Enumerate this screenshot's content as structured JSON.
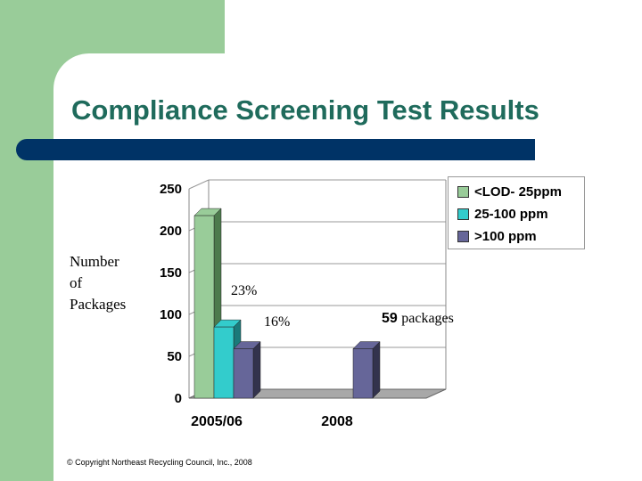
{
  "slide": {
    "title": "Compliance Screening Test Results"
  },
  "annotations": {
    "pct_2005_mid": "23%",
    "pct_2005_high": "16%",
    "packages_num": "59",
    "packages_unit": "packages"
  },
  "copyright": "© Copyright Northeast Recycling Council, Inc., 2008",
  "ylabel_lines": [
    "Number",
    "of",
    "Packages"
  ],
  "colors": {
    "green": "#99cc99",
    "teal": "#33cccc",
    "purple": "#666699",
    "title": "#1f6b5c",
    "bar": "#003366"
  },
  "chart_data": {
    "type": "bar",
    "categories": [
      "2005/06",
      "2008"
    ],
    "series": [
      {
        "name": "<LOD- 25ppm",
        "values": [
          218,
          0
        ],
        "color": "#99cc99",
        "side": "#4d7a4d"
      },
      {
        "name": "25-100 ppm",
        "values": [
          85,
          0
        ],
        "color": "#33cccc",
        "side": "#1a7a7a"
      },
      {
        "name": ">100 ppm",
        "values": [
          59,
          59
        ],
        "color": "#666699",
        "side": "#33334d"
      }
    ],
    "yticks": [
      0,
      50,
      100,
      150,
      200,
      250
    ],
    "ylim": [
      0,
      250
    ],
    "ylabel": "Number of Packages"
  }
}
